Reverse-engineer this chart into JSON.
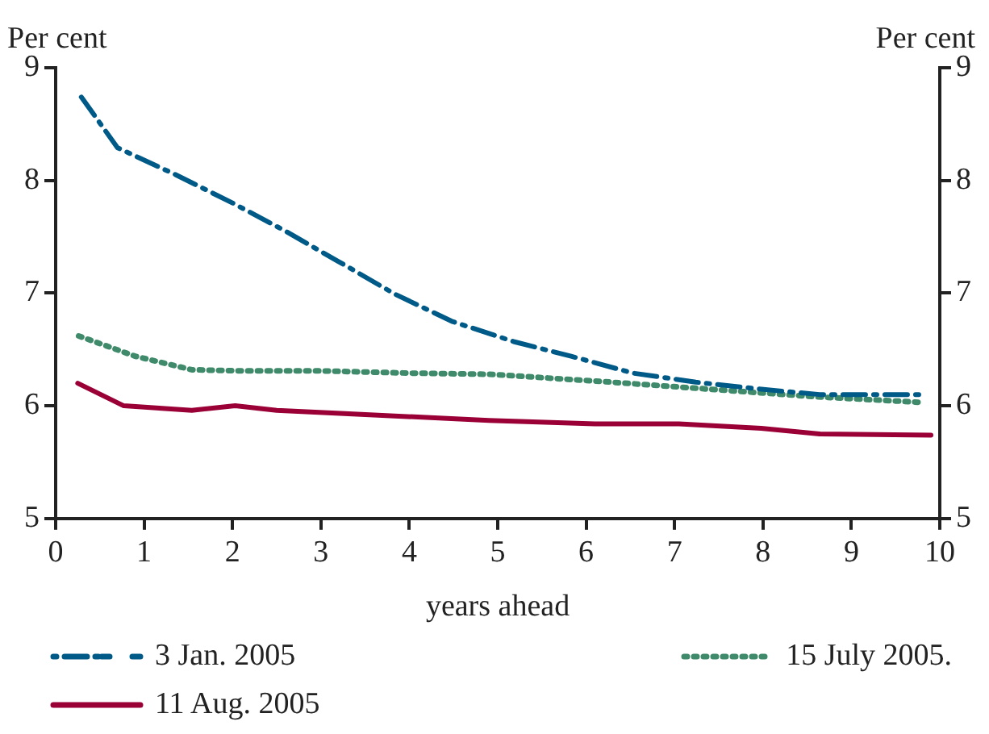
{
  "chart_data": {
    "type": "line",
    "xlabel": "years ahead",
    "ylabel": "Per cent",
    "y2label": "Per cent",
    "xlim": [
      0,
      10
    ],
    "xticks": [
      0,
      1,
      2,
      3,
      4,
      5,
      6,
      7,
      8,
      9,
      10
    ],
    "ylim": [
      5,
      9
    ],
    "yticks": [
      5,
      6,
      7,
      8,
      9
    ],
    "y2lim": [
      5,
      9
    ],
    "y2ticks": [
      5,
      6,
      7,
      8,
      9
    ],
    "grid": false,
    "legend": "bottom",
    "marker": "none",
    "series": [
      {
        "name": "3 Jan. 2005",
        "color": "#005a87",
        "line_style": "dashed",
        "x": [
          0.29,
          0.7,
          1.36,
          2.0,
          2.6,
          3.2,
          3.84,
          4.48,
          5.18,
          5.83,
          6.53,
          7.24,
          7.94,
          8.64,
          9.82
        ],
        "values": [
          8.74,
          8.29,
          8.05,
          7.8,
          7.55,
          7.28,
          6.99,
          6.75,
          6.57,
          6.44,
          6.29,
          6.21,
          6.15,
          6.1,
          6.1
        ]
      },
      {
        "name": "15 July 2005.",
        "color": "#3f8a6a",
        "line_style": "dotted",
        "x": [
          0.26,
          0.9,
          1.54,
          2.1,
          3.0,
          4.0,
          4.9,
          6.1,
          7.35,
          8.6,
          9.8
        ],
        "values": [
          6.62,
          6.44,
          6.32,
          6.31,
          6.31,
          6.29,
          6.28,
          6.22,
          6.15,
          6.08,
          6.03
        ]
      },
      {
        "name": "11 Aug. 2005",
        "color": "#9a0036",
        "line_style": "solid",
        "x": [
          0.25,
          0.77,
          1.54,
          2.03,
          2.5,
          4.9,
          6.1,
          7.05,
          7.98,
          8.64,
          9.9
        ],
        "values": [
          6.2,
          6.0,
          5.96,
          6.0,
          5.96,
          5.87,
          5.84,
          5.84,
          5.8,
          5.75,
          5.74
        ]
      }
    ]
  }
}
